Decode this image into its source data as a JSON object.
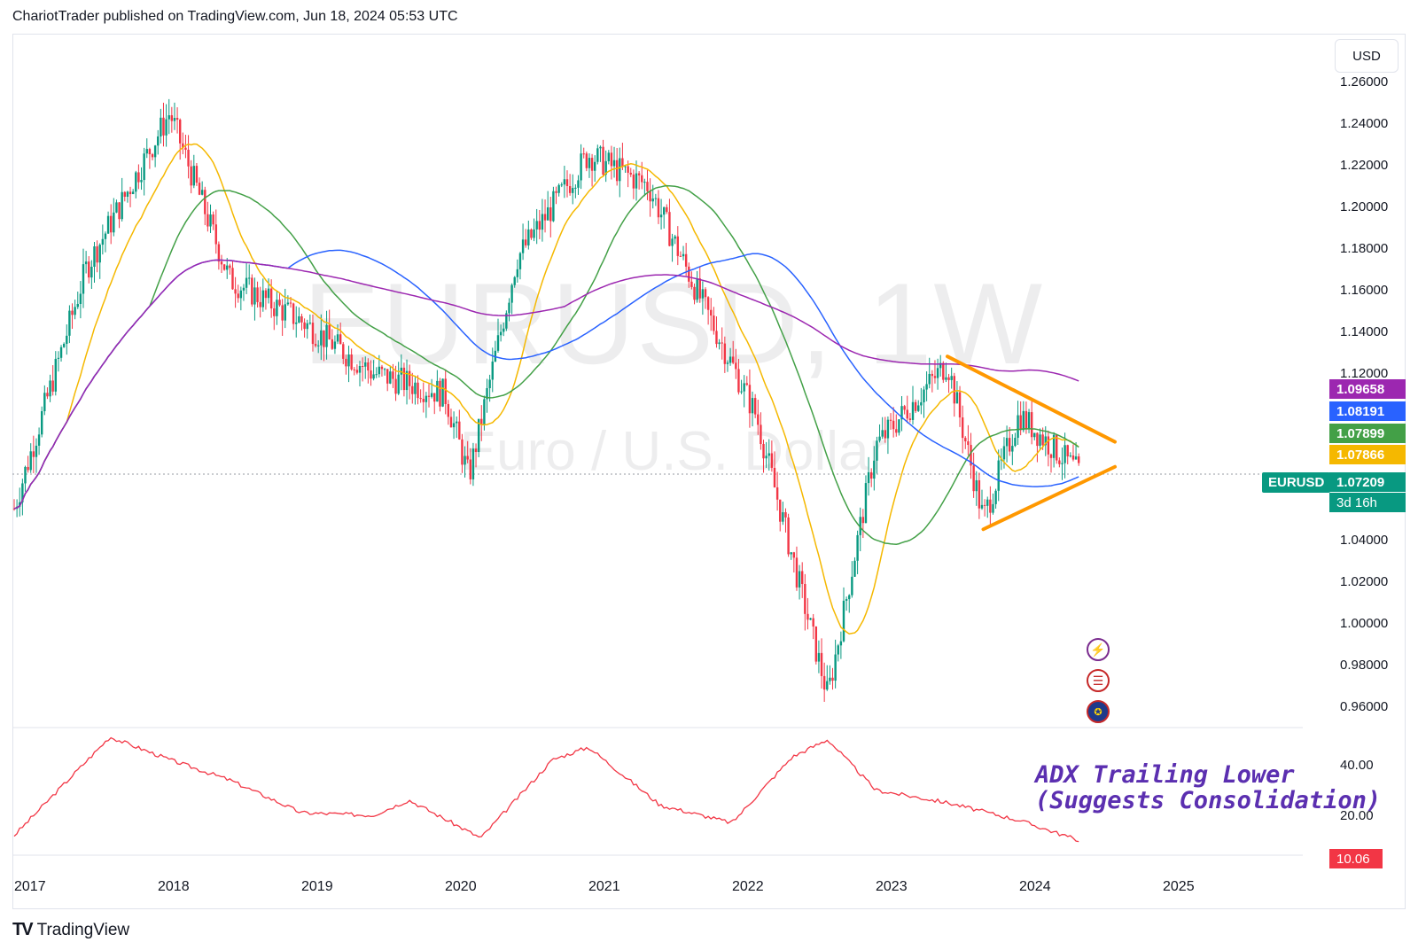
{
  "header": {
    "text": "ChariotTrader published on TradingView.com, Jun 18, 2024 05:53 UTC"
  },
  "watermark": {
    "symbol": "EURUSD, 1W",
    "name": "Euro / U.S. Dollar"
  },
  "price_axis": {
    "currency": "USD",
    "ticks": [
      "1.26000",
      "1.24000",
      "1.22000",
      "1.20000",
      "1.18000",
      "1.16000",
      "1.14000",
      "1.12000",
      "1.04000",
      "1.02000",
      "1.00000",
      "0.98000",
      "0.96000"
    ]
  },
  "tags": {
    "ma200": {
      "value": "1.09658",
      "color": "#9c27b0"
    },
    "ma100": {
      "value": "1.08191",
      "color": "#2962ff"
    },
    "ma50": {
      "value": "1.07899",
      "color": "#43a047"
    },
    "ma20": {
      "value": "1.07866",
      "color": "#f5b800"
    },
    "symbol_label": "EURUSD",
    "last_price": "1.07209",
    "countdown": "3d 16h"
  },
  "annotation": {
    "line1": "ADX Trailing Lower",
    "line2": "(Suggests Consolidation)"
  },
  "adx_axis": {
    "ticks": [
      "40.00",
      "20.00"
    ],
    "current": "10.06"
  },
  "time_axis": {
    "years": [
      "2017",
      "2018",
      "2019",
      "2020",
      "2021",
      "2022",
      "2023",
      "2024",
      "2025"
    ]
  },
  "footer": {
    "brand": "TradingView",
    "logo": "TV"
  },
  "event_icons": [
    "lightning-icon",
    "us-flag-icon",
    "eu-flag-icon"
  ],
  "chart_data": [
    {
      "type": "line",
      "title": "EURUSD, 1W — Euro / U.S. Dollar",
      "ylim": [
        0.955,
        1.265
      ],
      "x": [
        "2017-01",
        "2017-07",
        "2018-02",
        "2018-07",
        "2019-01",
        "2019-07",
        "2020-01",
        "2020-03",
        "2020-07",
        "2021-01",
        "2021-06",
        "2021-10",
        "2022-03",
        "2022-09",
        "2023-01",
        "2023-07",
        "2023-10",
        "2024-01",
        "2024-06"
      ],
      "series": [
        {
          "name": "EURUSD",
          "color": "#089981",
          "values": [
            1.055,
            1.17,
            1.245,
            1.165,
            1.145,
            1.12,
            1.11,
            1.07,
            1.175,
            1.225,
            1.21,
            1.16,
            1.1,
            0.965,
            1.085,
            1.125,
            1.05,
            1.1,
            1.072
          ]
        }
      ],
      "overlays": {
        "ma_colors": [
          "#f5b800",
          "#43a047",
          "#2962ff",
          "#9c27b0"
        ],
        "triangle_color": "#ff9800",
        "triangle_upper": {
          "from": [
            "2023-07",
            1.128
          ],
          "to": [
            "2024-09",
            1.087
          ]
        },
        "triangle_lower": {
          "from": [
            "2023-10",
            1.045
          ],
          "to": [
            "2024-09",
            1.075
          ]
        }
      }
    },
    {
      "type": "line",
      "title": "ADX",
      "ylim": [
        5,
        55
      ],
      "x": [
        "2017-01",
        "2017-09",
        "2018-02",
        "2018-07",
        "2019-01",
        "2019-07",
        "2019-10",
        "2020-04",
        "2020-10",
        "2021-01",
        "2021-07",
        "2022-01",
        "2022-06",
        "2022-09",
        "2023-01",
        "2023-07",
        "2024-01",
        "2024-06"
      ],
      "series": [
        {
          "name": "ADX",
          "color": "#f23645",
          "values": [
            12,
            51,
            42,
            34,
            21,
            20,
            26,
            11,
            42,
            47,
            24,
            17,
            43,
            50,
            30,
            25,
            18,
            10.06
          ]
        }
      ]
    }
  ]
}
